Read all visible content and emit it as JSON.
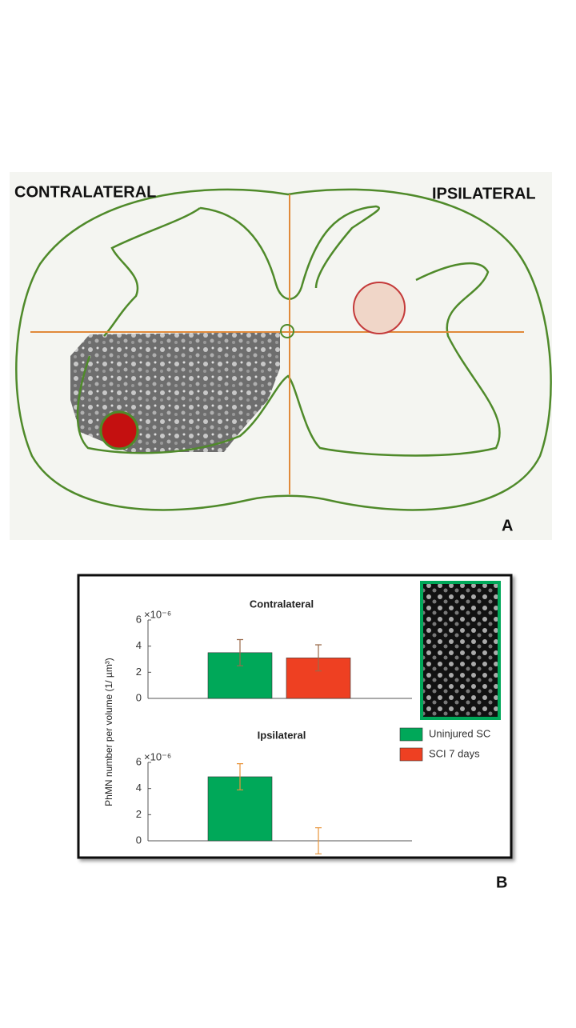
{
  "figure": {
    "left_label": "CONTRALATERAL",
    "right_label": "IPSILATERAL",
    "panel_a": "A",
    "panel_b": "B",
    "y_label": "PhMN number per volume (1/ µm³)"
  },
  "chart_data": [
    {
      "type": "bar",
      "title": "Contralateral",
      "y_multiplier": "×10⁻⁶",
      "categories": [
        null
      ],
      "series": [
        {
          "name": "Uninjured SC",
          "color": "#00a859",
          "values": [
            3.5
          ],
          "errors": [
            1.0
          ]
        },
        {
          "name": "SCI 7 days",
          "color": "#ee4022",
          "values": [
            3.1
          ],
          "errors": [
            1.0
          ]
        }
      ],
      "ylim": [
        0,
        6
      ],
      "yticks": [
        0,
        2,
        4,
        6
      ]
    },
    {
      "type": "bar",
      "title": "Ipsilateral",
      "y_multiplier": "×10⁻⁶",
      "categories": [
        null
      ],
      "series": [
        {
          "color": "#00a859",
          "values": [
            4.9
          ],
          "errors": [
            1.0
          ]
        },
        {
          "color": "#ee4022",
          "values": [
            0
          ],
          "errors": [
            1.0
          ]
        }
      ],
      "ylim": [
        0,
        6
      ],
      "yticks": [
        0,
        2,
        4,
        6
      ]
    }
  ]
}
